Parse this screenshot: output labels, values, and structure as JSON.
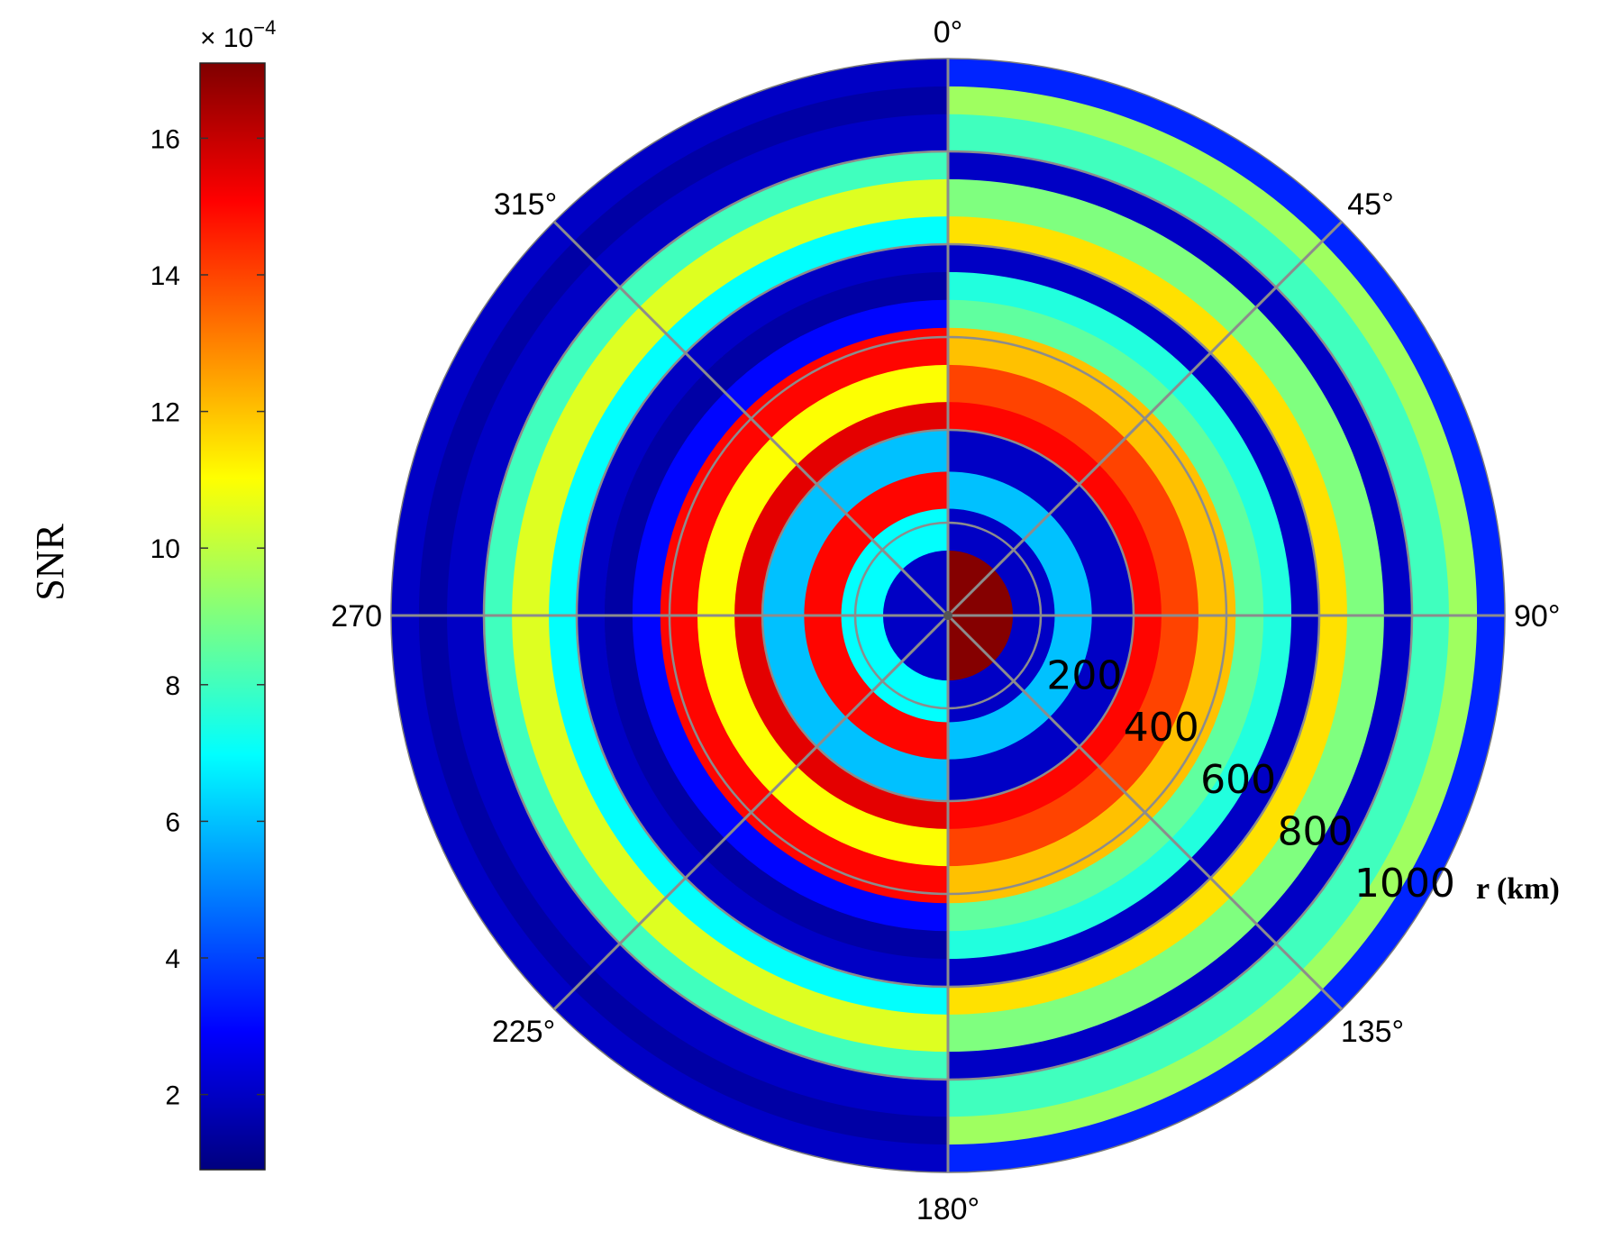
{
  "chart_data": {
    "type": "heatmap",
    "subtype": "polar",
    "title": "",
    "colorbar": {
      "label": "SNR",
      "exponent_text": "× 10",
      "exponent_power": "−4",
      "range": [
        0.9,
        17.1
      ],
      "ticks": [
        {
          "value": 2,
          "label": "2"
        },
        {
          "value": 4,
          "label": "4"
        },
        {
          "value": 6,
          "label": "6"
        },
        {
          "value": 8,
          "label": "8"
        },
        {
          "value": 10,
          "label": "10"
        },
        {
          "value": 12,
          "label": "12"
        },
        {
          "value": 14,
          "label": "14"
        },
        {
          "value": 16,
          "label": "16"
        }
      ],
      "colormap": "jet",
      "colormap_stops": [
        "#00007f",
        "#0000ff",
        "#007fff",
        "#00ffff",
        "#7fff7f",
        "#ffff00",
        "#ff7f00",
        "#ff0000",
        "#7f0000"
      ]
    },
    "angular_axis": {
      "direction": "clockwise",
      "zero": "top",
      "labels": [
        {
          "angle": 0,
          "label": "0°"
        },
        {
          "angle": 45,
          "label": "45°"
        },
        {
          "angle": 90,
          "label": "90°"
        },
        {
          "angle": 135,
          "label": "135°"
        },
        {
          "angle": 180,
          "label": "180°"
        },
        {
          "angle": 225,
          "label": "225°"
        },
        {
          "angle": 270,
          "label": "270"
        },
        {
          "angle": 315,
          "label": "315°"
        }
      ]
    },
    "radial_axis": {
      "title": "r (km)",
      "range": [
        0,
        1200
      ],
      "ticks": [
        {
          "value": 200,
          "label": "200"
        },
        {
          "value": 400,
          "label": "400"
        },
        {
          "value": 600,
          "label": "600"
        },
        {
          "value": 800,
          "label": "800"
        },
        {
          "value": 1000,
          "label": "1000"
        }
      ]
    },
    "grid": true,
    "bands": [
      {
        "r": [
          0,
          140
        ],
        "right_half_snr": 17.0,
        "left_half_snr": 2.0
      },
      {
        "r": [
          140,
          230
        ],
        "right_half_snr": 2.0,
        "left_half_snr": 7.0
      },
      {
        "r": [
          230,
          310
        ],
        "right_half_snr": 6.0,
        "left_half_snr": 15.0
      },
      {
        "r": [
          310,
          400
        ],
        "right_half_snr": 2.0,
        "left_half_snr": 6.0
      },
      {
        "r": [
          400,
          460
        ],
        "right_half_snr": 15.0,
        "left_half_snr": 15.5
      },
      {
        "r": [
          460,
          540
        ],
        "right_half_snr": 14.0,
        "left_half_snr": 11.0
      },
      {
        "r": [
          540,
          620
        ],
        "right_half_snr": 12.0,
        "left_half_snr": 15.0
      },
      {
        "r": [
          620,
          680
        ],
        "right_half_snr": 8.5,
        "left_half_snr": 3.0
      },
      {
        "r": [
          680,
          740
        ],
        "right_half_snr": 7.5,
        "left_half_snr": 1.5
      },
      {
        "r": [
          740,
          800
        ],
        "right_half_snr": 2.0,
        "left_half_snr": 2.0
      },
      {
        "r": [
          800,
          860
        ],
        "right_half_snr": 11.5,
        "left_half_snr": 7.0
      },
      {
        "r": [
          860,
          940
        ],
        "right_half_snr": 9.0,
        "left_half_snr": 10.5
      },
      {
        "r": [
          940,
          1000
        ],
        "right_half_snr": 2.0,
        "left_half_snr": 8.0
      },
      {
        "r": [
          1000,
          1080
        ],
        "right_half_snr": 8.0,
        "left_half_snr": 2.0
      },
      {
        "r": [
          1080,
          1140
        ],
        "right_half_snr": 9.5,
        "left_half_snr": 1.5
      },
      {
        "r": [
          1140,
          1200
        ],
        "right_half_snr": 3.5,
        "left_half_snr": 2.0
      }
    ]
  }
}
